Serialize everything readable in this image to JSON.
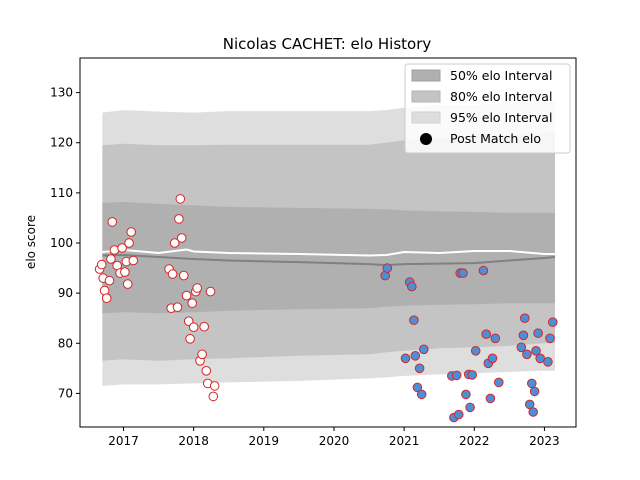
{
  "chart_data": {
    "type": "line",
    "title": "Nicolas CACHET: elo History",
    "xlabel": "",
    "ylabel": "elo score",
    "xlim": [
      2016.38,
      2023.45
    ],
    "ylim": [
      63.3,
      136.9
    ],
    "x_ticks": [
      2017,
      2018,
      2019,
      2020,
      2021,
      2022,
      2023
    ],
    "x_tick_labels": [
      "2017",
      "2018",
      "2019",
      "2020",
      "2021",
      "2022",
      "2023"
    ],
    "y_ticks": [
      70,
      80,
      90,
      100,
      110,
      120,
      130
    ],
    "y_tick_labels": [
      "70",
      "80",
      "90",
      "100",
      "110",
      "120",
      "130"
    ],
    "grid": false,
    "legend_position": "top-right",
    "legend": [
      {
        "label": "50% elo Interval",
        "kind": "patch",
        "color": "#b0b0b0"
      },
      {
        "label": "80% elo Interval",
        "kind": "patch",
        "color": "#c4c4c4"
      },
      {
        "label": "95% elo Interval",
        "kind": "patch",
        "color": "#dedede"
      },
      {
        "label": "Post Match elo",
        "kind": "dot",
        "color": "#000000"
      }
    ],
    "colors": {
      "band50": "#b0b0b0",
      "band80": "#c4c4c4",
      "band95": "#dedede",
      "mean_line": "#808080",
      "mean_line_light": "#ffffff",
      "win_face": "#ffffff",
      "win_edge": "#d62728",
      "loss_face": "#4a90d9",
      "loss_edge": "#d62728"
    },
    "bands": {
      "x": [
        2016.7,
        2017.0,
        2017.5,
        2018.0,
        2018.5,
        2019.5,
        2020.5,
        2020.75,
        2021.0,
        2021.5,
        2022.0,
        2022.5,
        2023.0,
        2023.15
      ],
      "p95_upper": [
        126.0,
        126.5,
        126.2,
        126.0,
        126.3,
        126.3,
        126.3,
        126.5,
        127.0,
        127.5,
        127.5,
        128.0,
        128.5,
        128.5
      ],
      "p80_upper": [
        119.5,
        119.8,
        119.5,
        119.5,
        119.6,
        119.6,
        119.6,
        120.0,
        120.5,
        121.0,
        121.2,
        121.5,
        122.0,
        122.0
      ],
      "p50_upper": [
        108.0,
        108.2,
        107.8,
        107.5,
        107.2,
        107.0,
        106.8,
        106.7,
        106.5,
        106.3,
        106.2,
        106.0,
        106.0,
        106.0
      ],
      "p50_lower": [
        86.0,
        86.2,
        86.0,
        86.2,
        86.5,
        86.8,
        87.0,
        87.3,
        87.5,
        87.7,
        87.8,
        88.0,
        88.0,
        88.0
      ],
      "p80_lower": [
        76.5,
        76.8,
        76.5,
        76.8,
        77.0,
        77.5,
        77.8,
        78.2,
        78.5,
        79.0,
        79.2,
        79.5,
        80.0,
        80.0
      ],
      "p95_lower": [
        71.5,
        71.8,
        71.8,
        72.0,
        72.2,
        72.5,
        73.0,
        73.2,
        73.5,
        73.8,
        74.0,
        74.3,
        74.5,
        74.5
      ]
    },
    "mean_line": {
      "x": [
        2016.7,
        2017.0,
        2017.5,
        2018.0,
        2018.5,
        2019.5,
        2020.5,
        2020.75,
        2021.0,
        2021.5,
        2022.0,
        2022.5,
        2023.0,
        2023.15
      ],
      "y": [
        97.5,
        97.6,
        97.2,
        96.8,
        96.5,
        96.2,
        95.8,
        95.6,
        95.8,
        95.9,
        96.0,
        96.5,
        97.0,
        97.2
      ]
    },
    "mean_line_light": {
      "x": [
        2016.7,
        2017.0,
        2017.5,
        2017.9,
        2018.0,
        2018.5,
        2019.5,
        2020.5,
        2020.75,
        2021.0,
        2021.5,
        2022.0,
        2022.5,
        2023.0,
        2023.15
      ],
      "y": [
        98.2,
        98.6,
        98.0,
        98.7,
        98.3,
        98.0,
        97.8,
        97.5,
        97.6,
        98.2,
        98.0,
        98.4,
        98.4,
        97.8,
        97.8
      ]
    },
    "series": [
      {
        "name": "Post Match elo",
        "style": "win",
        "points": [
          [
            2016.66,
            94.8
          ],
          [
            2016.69,
            95.7
          ],
          [
            2016.71,
            93.0
          ],
          [
            2016.73,
            90.5
          ],
          [
            2016.76,
            89.0
          ],
          [
            2016.8,
            92.5
          ],
          [
            2016.82,
            96.8
          ],
          [
            2016.84,
            104.2
          ],
          [
            2016.87,
            98.6
          ],
          [
            2016.91,
            95.5
          ],
          [
            2016.95,
            94.0
          ],
          [
            2016.98,
            99.0
          ],
          [
            2017.02,
            94.2
          ],
          [
            2017.04,
            96.3
          ],
          [
            2017.06,
            91.8
          ],
          [
            2017.08,
            100.0
          ],
          [
            2017.11,
            102.2
          ],
          [
            2017.14,
            96.5
          ],
          [
            2017.65,
            94.8
          ],
          [
            2017.68,
            87.0
          ],
          [
            2017.7,
            93.8
          ],
          [
            2017.73,
            100.0
          ],
          [
            2017.77,
            87.2
          ],
          [
            2017.79,
            104.8
          ],
          [
            2017.81,
            108.8
          ],
          [
            2017.83,
            101.0
          ],
          [
            2017.86,
            93.5
          ],
          [
            2017.9,
            89.5
          ],
          [
            2017.93,
            84.4
          ],
          [
            2017.95,
            80.9
          ],
          [
            2017.98,
            88.0
          ],
          [
            2018.0,
            83.2
          ],
          [
            2018.03,
            90.3
          ],
          [
            2018.05,
            91.0
          ],
          [
            2018.09,
            76.5
          ],
          [
            2018.12,
            77.8
          ],
          [
            2018.15,
            83.3
          ],
          [
            2018.18,
            74.5
          ],
          [
            2018.2,
            72.0
          ],
          [
            2018.24,
            90.3
          ],
          [
            2018.28,
            69.4
          ],
          [
            2018.3,
            71.5
          ]
        ]
      },
      {
        "name": "Post Match elo",
        "style": "loss",
        "points": [
          [
            2020.73,
            93.5
          ],
          [
            2020.76,
            95.0
          ],
          [
            2021.02,
            77.0
          ],
          [
            2021.08,
            92.2
          ],
          [
            2021.11,
            91.3
          ],
          [
            2021.14,
            84.6
          ],
          [
            2021.16,
            77.5
          ],
          [
            2021.19,
            71.2
          ],
          [
            2021.22,
            75.0
          ],
          [
            2021.25,
            69.8
          ],
          [
            2021.28,
            78.8
          ],
          [
            2021.68,
            73.5
          ],
          [
            2021.71,
            65.2
          ],
          [
            2021.75,
            73.6
          ],
          [
            2021.78,
            65.8
          ],
          [
            2021.8,
            94.0
          ],
          [
            2021.84,
            94.0
          ],
          [
            2021.88,
            69.8
          ],
          [
            2021.92,
            73.8
          ],
          [
            2021.94,
            67.2
          ],
          [
            2021.97,
            73.7
          ],
          [
            2022.02,
            78.5
          ],
          [
            2022.13,
            94.5
          ],
          [
            2022.17,
            81.8
          ],
          [
            2022.2,
            76.0
          ],
          [
            2022.23,
            69.0
          ],
          [
            2022.26,
            77.0
          ],
          [
            2022.3,
            81.0
          ],
          [
            2022.35,
            72.2
          ],
          [
            2022.67,
            79.2
          ],
          [
            2022.7,
            81.6
          ],
          [
            2022.72,
            85.0
          ],
          [
            2022.75,
            77.8
          ],
          [
            2022.79,
            67.8
          ],
          [
            2022.82,
            72.0
          ],
          [
            2022.84,
            66.3
          ],
          [
            2022.86,
            70.4
          ],
          [
            2022.88,
            78.5
          ],
          [
            2022.91,
            82.0
          ],
          [
            2022.94,
            77.0
          ],
          [
            2023.05,
            76.3
          ],
          [
            2023.08,
            81.0
          ],
          [
            2023.12,
            84.2
          ]
        ]
      }
    ]
  }
}
